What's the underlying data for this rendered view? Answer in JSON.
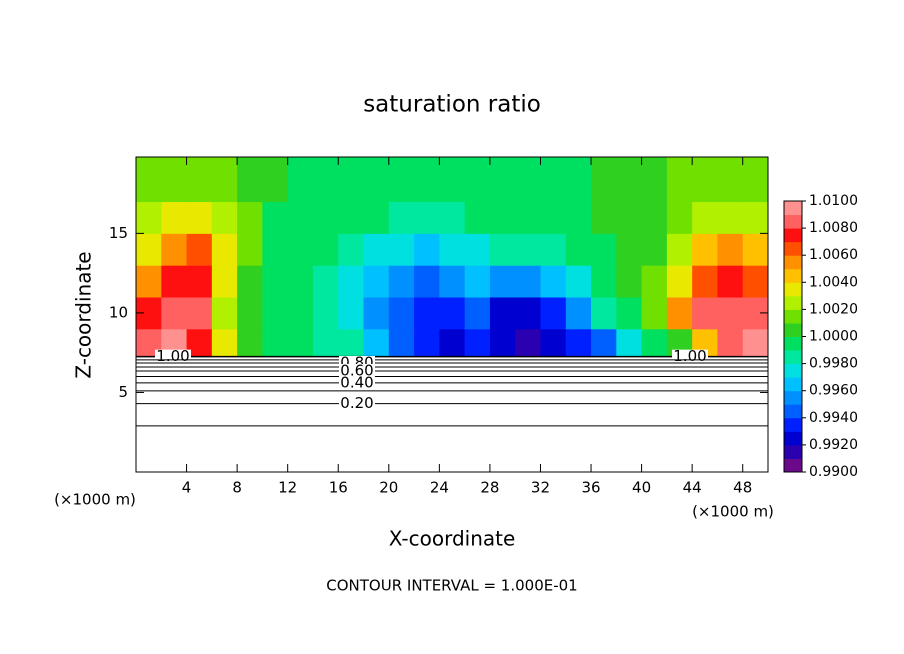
{
  "chart_data": {
    "type": "contour",
    "title": "saturation ratio",
    "xlabel": "X-coordinate",
    "ylabel": "Z-coordinate",
    "unit": "(×1000 m)",
    "annotation": "CONTOUR INTERVAL = 1.000E-01",
    "xlim": [
      0,
      50
    ],
    "xticks": [
      4,
      8,
      12,
      16,
      20,
      24,
      28,
      32,
      36,
      40,
      44,
      48
    ],
    "ylim": [
      0,
      19.8
    ],
    "yticks": [
      5,
      10,
      15
    ],
    "field": {
      "x": [
        1,
        3,
        5,
        7,
        9,
        11,
        13,
        15,
        17,
        19,
        21,
        23,
        25,
        27,
        29,
        31,
        33,
        35,
        37,
        39,
        41,
        43,
        45,
        47,
        49
      ],
      "z": [
        8,
        10,
        12,
        14,
        16,
        18
      ],
      "values": [
        [
          1.008,
          1.009,
          1.007,
          1.003,
          1.0,
          0.9995,
          0.999,
          0.9985,
          0.998,
          0.996,
          0.994,
          0.993,
          0.992,
          0.993,
          0.992,
          0.991,
          0.992,
          0.993,
          0.994,
          0.997,
          0.999,
          1.0,
          1.004,
          1.008,
          1.009
        ],
        [
          1.007,
          1.008,
          1.008,
          1.002,
          1.0,
          0.9995,
          0.999,
          0.998,
          0.997,
          0.995,
          0.994,
          0.993,
          0.993,
          0.994,
          0.992,
          0.992,
          0.993,
          0.995,
          0.998,
          0.9995,
          1.001,
          1.005,
          1.008,
          1.008,
          1.008
        ],
        [
          1.005,
          1.007,
          1.007,
          1.003,
          1.0005,
          0.9995,
          0.999,
          0.998,
          0.997,
          0.996,
          0.995,
          0.994,
          0.995,
          0.996,
          0.995,
          0.995,
          0.996,
          0.997,
          0.999,
          1.0,
          1.001,
          1.003,
          1.006,
          1.007,
          1.006
        ],
        [
          1.003,
          1.005,
          1.006,
          1.003,
          1.001,
          0.9995,
          0.999,
          0.999,
          0.998,
          0.997,
          0.997,
          0.996,
          0.997,
          0.997,
          0.998,
          0.998,
          0.998,
          0.999,
          0.9995,
          1.0,
          1.0005,
          1.002,
          1.004,
          1.005,
          1.004
        ],
        [
          1.002,
          1.003,
          1.003,
          1.002,
          1.001,
          0.9995,
          0.9995,
          0.999,
          0.999,
          0.999,
          0.998,
          0.998,
          0.998,
          0.999,
          0.999,
          0.999,
          0.9995,
          0.9995,
          1.0,
          1.0,
          1.0005,
          1.001,
          1.002,
          1.002,
          1.002
        ],
        [
          1.001,
          1.001,
          1.001,
          1.001,
          1.0005,
          1.0,
          0.9995,
          0.9995,
          0.9995,
          0.9995,
          0.9995,
          0.9995,
          0.9995,
          0.9995,
          0.9995,
          0.9995,
          0.9995,
          0.9995,
          1.0,
          1.0,
          1.0005,
          1.001,
          1.001,
          1.001,
          1.001
        ]
      ]
    },
    "contours": [
      {
        "value": 1.0,
        "z": 7.25,
        "label": "1.00"
      },
      {
        "value": 0.9,
        "z": 7.05
      },
      {
        "value": 0.8,
        "z": 6.85,
        "label": "0.80"
      },
      {
        "value": 0.7,
        "z": 6.6
      },
      {
        "value": 0.6,
        "z": 6.35,
        "label": "0.60"
      },
      {
        "value": 0.5,
        "z": 6.0
      },
      {
        "value": 0.4,
        "z": 5.6,
        "label": "0.40"
      },
      {
        "value": 0.3,
        "z": 5.1
      },
      {
        "value": 0.2,
        "z": 4.3,
        "label": "0.20"
      },
      {
        "value": 0.1,
        "z": 2.9
      }
    ],
    "colorbar": {
      "lim": [
        0.99,
        1.01
      ],
      "colors": [
        "#6a0a8a",
        "#2a00b0",
        "#0000d0",
        "#0020ff",
        "#0060ff",
        "#0090ff",
        "#00c0ff",
        "#00e0e0",
        "#00e8a0",
        "#00e060",
        "#30d020",
        "#70e000",
        "#b0f000",
        "#e8e800",
        "#ffc000",
        "#ff9000",
        "#ff5000",
        "#ff1010",
        "#ff6060",
        "#ff9090"
      ],
      "ticks": [
        {
          "value": 0.99,
          "label": "0.9900"
        },
        {
          "value": 0.992,
          "label": "0.9920"
        },
        {
          "value": 0.994,
          "label": "0.9940"
        },
        {
          "value": 0.996,
          "label": "0.9960"
        },
        {
          "value": 0.998,
          "label": "0.9980"
        },
        {
          "value": 1.0,
          "label": "1.0000"
        },
        {
          "value": 1.002,
          "label": "1.0020"
        },
        {
          "value": 1.004,
          "label": "1.0040"
        },
        {
          "value": 1.006,
          "label": "1.0060"
        },
        {
          "value": 1.008,
          "label": "1.0080"
        },
        {
          "value": 1.01,
          "label": "1.0100"
        }
      ]
    }
  }
}
